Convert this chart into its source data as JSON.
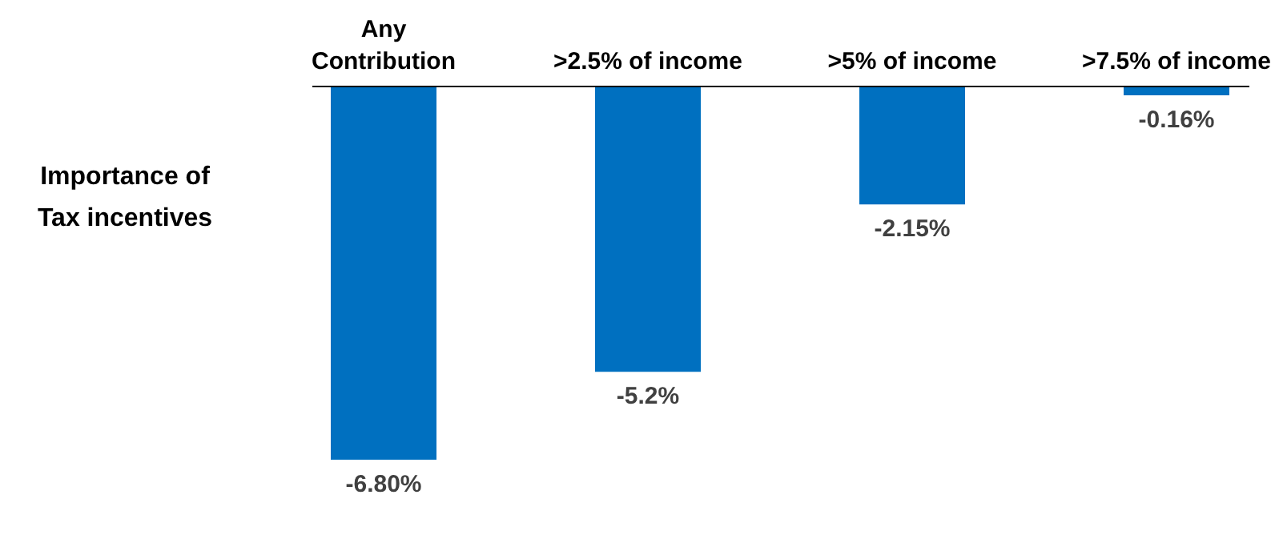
{
  "chart_data": {
    "type": "bar",
    "categories": [
      "Any Contribution",
      ">2.5% of income",
      ">5% of income",
      ">7.5% of income"
    ],
    "values": [
      -6.8,
      -5.2,
      -2.15,
      -0.16
    ],
    "value_labels": [
      "-6.80%",
      "-5.2%",
      "-2.15%",
      "-0.16%"
    ],
    "color": "#0070c0",
    "annotations": [
      "Importance of Tax incentives"
    ]
  }
}
